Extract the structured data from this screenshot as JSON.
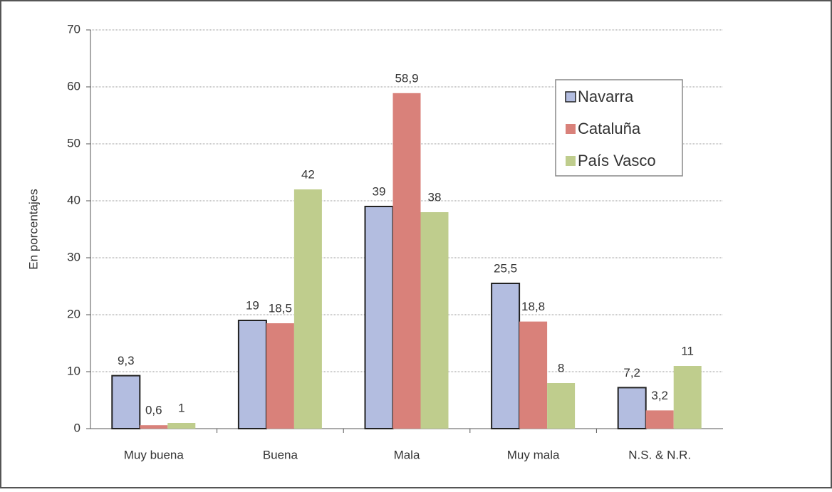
{
  "chart_data": {
    "type": "bar",
    "y_label": "En porcentajes",
    "categories": [
      "Muy buena",
      "Buena",
      "Mala",
      "Muy mala",
      "N.S. & N.R."
    ],
    "series": [
      {
        "name": "Navarra",
        "color": "#b3bde0",
        "values": [
          9.3,
          19,
          39,
          25.5,
          7.2
        ],
        "value_labels": [
          "9,3",
          "19",
          "39",
          "25,5",
          "7,2"
        ]
      },
      {
        "name": "Cataluña",
        "color": "#d9817a",
        "values": [
          0.6,
          18.5,
          58.9,
          18.8,
          3.2
        ],
        "value_labels": [
          "0,6",
          "18,5",
          "58,9",
          "18,8",
          "3,2"
        ]
      },
      {
        "name": "País Vasco",
        "color": "#bfcd8d",
        "values": [
          1,
          42,
          38,
          8,
          11
        ],
        "value_labels": [
          "1",
          "42",
          "38",
          "8",
          "11"
        ]
      }
    ],
    "ylim": [
      0,
      70
    ],
    "yticks": [
      0,
      10,
      20,
      30,
      40,
      50,
      60,
      70
    ],
    "grid": true,
    "legend": "upper right"
  }
}
